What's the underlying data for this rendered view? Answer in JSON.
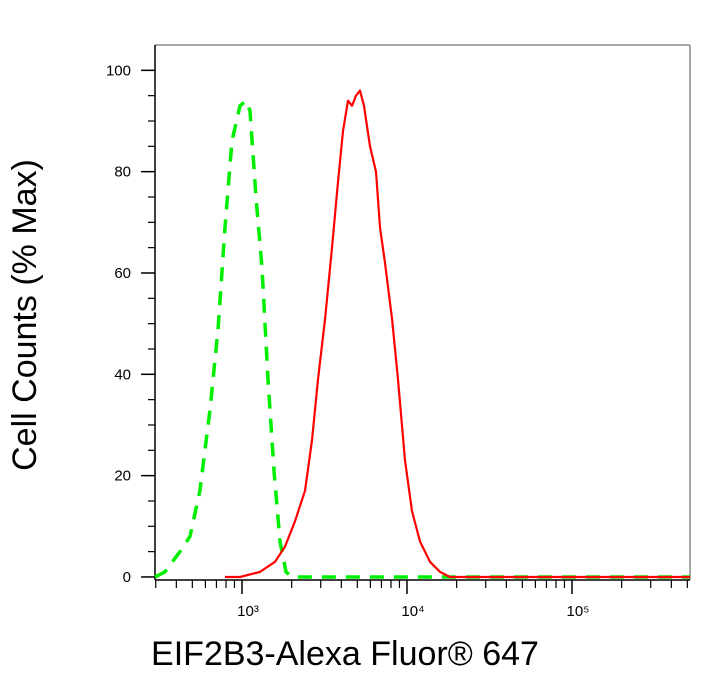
{
  "chart_data": {
    "type": "histogram-line",
    "x_label": "EIF2B3-Alexa Fluor® 647",
    "y_label": "Cell Counts (% Max)",
    "xscale": "log",
    "xlim": [
      297,
      519000
    ],
    "ylim": [
      -0.6,
      105
    ],
    "xticks": [
      {
        "value": 1000,
        "label": "10³"
      },
      {
        "value": 10000,
        "label": "10⁴"
      },
      {
        "value": 100000,
        "label": "10⁵"
      }
    ],
    "xminorticks": [
      300,
      400,
      500,
      600,
      700,
      800,
      900,
      2000,
      3000,
      4000,
      5000,
      6000,
      7000,
      8000,
      9000,
      20000,
      30000,
      40000,
      50000,
      60000,
      70000,
      80000,
      90000,
      200000,
      300000,
      400000,
      500000
    ],
    "yticks": [
      0,
      20,
      40,
      60,
      80,
      100
    ],
    "yminorticks": [
      5,
      10,
      15,
      25,
      30,
      35,
      45,
      50,
      55,
      65,
      70,
      75,
      85,
      90,
      95
    ],
    "series": [
      {
        "color": "#00ee00",
        "dash": "dashed",
        "x": [
          297,
          341,
          421,
          484,
          556,
          640,
          716,
          789,
          869,
          972,
          1058,
          1118,
          1216,
          1322,
          1437,
          1563,
          1700,
          1848,
          2010,
          9080,
          519000
        ],
        "values": [
          0,
          1,
          5,
          8,
          17,
          33,
          49,
          69,
          86,
          93,
          94,
          92,
          75,
          61,
          39,
          21,
          7,
          1,
          0,
          0,
          0
        ]
      },
      {
        "color": "#ff0000",
        "dash": "solid",
        "x": [
          789,
          972,
          1285,
          1585,
          1823,
          2094,
          2409,
          2655,
          2890,
          3187,
          3510,
          3818,
          4093,
          4387,
          4642,
          4909,
          5190,
          5485,
          5970,
          6490,
          6860,
          7360,
          8110,
          8820,
          9720,
          10720,
          11990,
          13780,
          15850,
          18230,
          519000
        ],
        "values": [
          0,
          0,
          1,
          3,
          6,
          11,
          17,
          27,
          39,
          51,
          65,
          78,
          88,
          94,
          93,
          95,
          96,
          93,
          85,
          80,
          69,
          62,
          51,
          39,
          23,
          13,
          7,
          3,
          1,
          0,
          0
        ]
      }
    ]
  }
}
